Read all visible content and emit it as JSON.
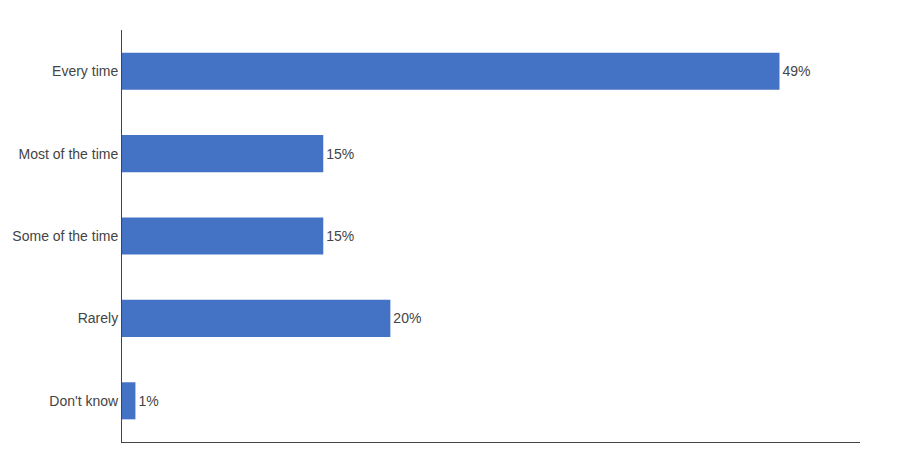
{
  "chart_data": {
    "type": "bar",
    "orientation": "horizontal",
    "categories": [
      "Every time",
      "Most of the time",
      "Some of the time",
      "Rarely",
      "Don't know"
    ],
    "values": [
      49,
      15,
      15,
      20,
      1
    ],
    "value_labels": [
      "49%",
      "15%",
      "15%",
      "20%",
      "1%"
    ],
    "color": "#4472C4",
    "xlim": [
      0,
      55
    ],
    "xticks": [],
    "tick_labels": "y",
    "data_labels": true,
    "grid": false
  }
}
